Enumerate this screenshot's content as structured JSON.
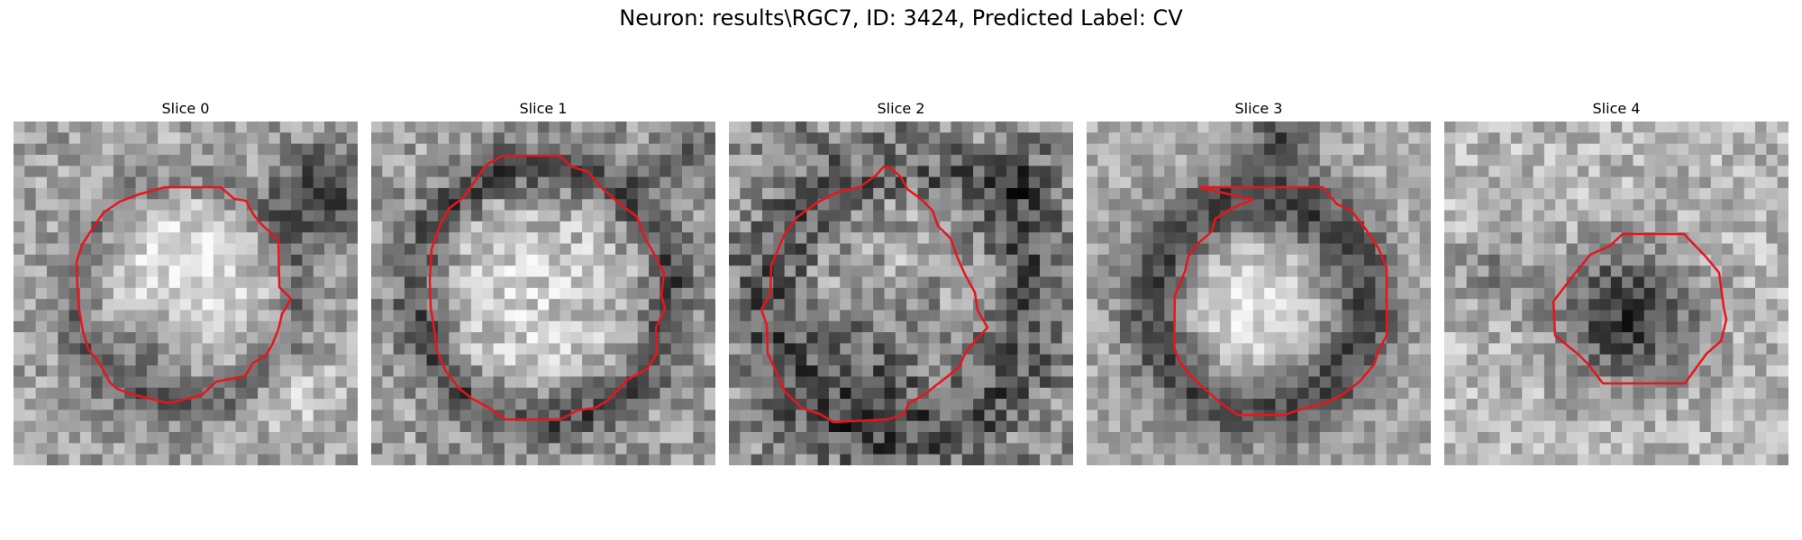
{
  "figure": {
    "title": "Neuron: results\\RGC7, ID: 3424, Predicted Label: CV"
  },
  "panels": [
    {
      "title": "Slice 0"
    },
    {
      "title": "Slice 1"
    },
    {
      "title": "Slice 2"
    },
    {
      "title": "Slice 3"
    },
    {
      "title": "Slice 4"
    }
  ],
  "style": {
    "contour_color": "#e8151b",
    "colormap": "grayscale"
  }
}
